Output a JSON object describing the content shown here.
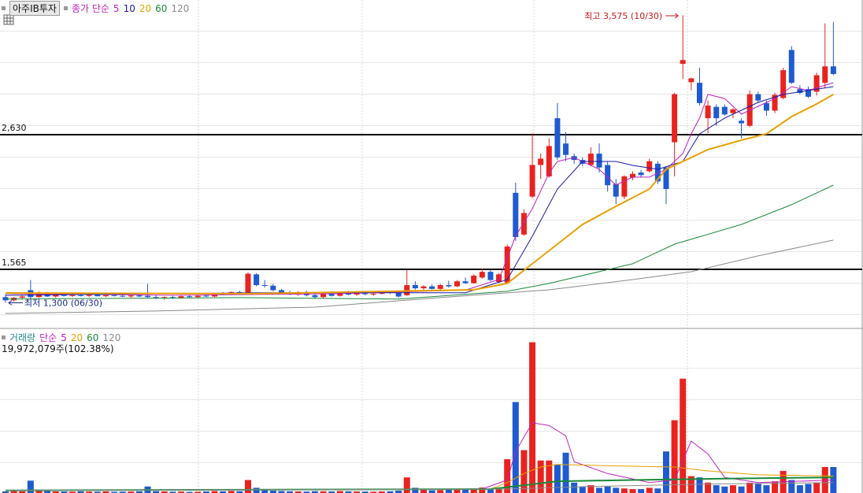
{
  "chart_data": [
    {
      "type": "candlestick",
      "title": "아주IB투자",
      "ma_label": "종가 단순",
      "up_color": "#e8231f",
      "down_color": "#1f5ad0",
      "ylim": [
        1110,
        3695
      ],
      "hlines": [
        {
          "value": 2630,
          "label": "2,630"
        },
        {
          "value": 1565,
          "label": "1,565"
        }
      ],
      "annotations": [
        {
          "text": "최고 3,575 (10/30)",
          "color": "#d01818"
        },
        {
          "text": "최저 1,300 (06/30)",
          "color": "#1a2a8a"
        }
      ],
      "open": [
        1345,
        1320,
        1340,
        1400,
        1345,
        1380,
        1350,
        1365,
        1355,
        1360,
        1355,
        1362,
        1352,
        1360,
        1355,
        1350,
        1358,
        1355,
        1345,
        1335,
        1345,
        1340,
        1352,
        1345,
        1356,
        1350,
        1372,
        1365,
        1385,
        1375,
        1525,
        1440,
        1435,
        1400,
        1378,
        1365,
        1385,
        1360,
        1345,
        1372,
        1355,
        1382,
        1365,
        1375,
        1368,
        1372,
        1385,
        1378,
        1360,
        1440,
        1415,
        1430,
        1410,
        1440,
        1430,
        1470,
        1455,
        1500,
        1545,
        1465,
        1460,
        2170,
        1840,
        2140,
        2390,
        2300,
        2760,
        2560,
        2460,
        2430,
        2390,
        2480,
        2390,
        2240,
        2140,
        2290,
        2330,
        2340,
        2400,
        2370,
        2570,
        3190,
        3045,
        3040,
        2760,
        2850,
        2850,
        2800,
        2740,
        2700,
        2950,
        2880,
        2820,
        2920,
        3300,
        2990,
        2990,
        2970,
        3040,
        3170
      ],
      "high": [
        1365,
        1345,
        1360,
        1480,
        1390,
        1385,
        1375,
        1380,
        1370,
        1375,
        1370,
        1375,
        1368,
        1372,
        1366,
        1365,
        1370,
        1450,
        1360,
        1350,
        1355,
        1358,
        1362,
        1360,
        1368,
        1380,
        1385,
        1390,
        1395,
        1540,
        1535,
        1480,
        1450,
        1410,
        1395,
        1390,
        1395,
        1375,
        1380,
        1385,
        1390,
        1395,
        1380,
        1385,
        1378,
        1390,
        1395,
        1400,
        1560,
        1470,
        1440,
        1445,
        1450,
        1475,
        1480,
        1500,
        1525,
        1570,
        1560,
        1535,
        1760,
        2250,
        2040,
        2640,
        2480,
        2600,
        2880,
        2650,
        2480,
        2450,
        2530,
        2560,
        2420,
        2280,
        2310,
        2340,
        2350,
        2440,
        2420,
        2380,
        2960,
        3575,
        3080,
        3160,
        2900,
        2870,
        2870,
        2840,
        2760,
        2980,
        2970,
        2900,
        2960,
        3160,
        3330,
        3020,
        3010,
        3120,
        3510,
        3520
      ],
      "low": [
        1300,
        1310,
        1325,
        1335,
        1340,
        1345,
        1340,
        1350,
        1345,
        1350,
        1345,
        1350,
        1345,
        1350,
        1345,
        1340,
        1345,
        1340,
        1330,
        1325,
        1330,
        1335,
        1340,
        1338,
        1345,
        1345,
        1360,
        1360,
        1365,
        1370,
        1430,
        1420,
        1390,
        1370,
        1360,
        1355,
        1350,
        1335,
        1335,
        1350,
        1350,
        1360,
        1355,
        1360,
        1355,
        1365,
        1370,
        1340,
        1355,
        1405,
        1395,
        1405,
        1400,
        1420,
        1425,
        1450,
        1450,
        1490,
        1470,
        1455,
        1450,
        1790,
        1830,
        2130,
        2280,
        2290,
        2430,
        2420,
        2400,
        2380,
        2380,
        2330,
        2180,
        2080,
        2120,
        2270,
        2290,
        2330,
        2240,
        2080,
        2300,
        3070,
        2980,
        2860,
        2640,
        2700,
        2780,
        2760,
        2600,
        2690,
        2880,
        2780,
        2800,
        2910,
        3030,
        2950,
        2920,
        2940,
        3000,
        3100
      ],
      "close": [
        1320,
        1340,
        1350,
        1345,
        1380,
        1350,
        1365,
        1355,
        1360,
        1355,
        1362,
        1352,
        1360,
        1355,
        1350,
        1358,
        1350,
        1345,
        1335,
        1345,
        1340,
        1352,
        1345,
        1356,
        1350,
        1372,
        1365,
        1385,
        1370,
        1530,
        1440,
        1435,
        1400,
        1378,
        1365,
        1385,
        1360,
        1345,
        1372,
        1355,
        1382,
        1365,
        1375,
        1368,
        1372,
        1385,
        1378,
        1350,
        1440,
        1415,
        1430,
        1410,
        1440,
        1430,
        1470,
        1455,
        1515,
        1545,
        1480,
        1525,
        1745,
        1820,
        2010,
        2390,
        2440,
        2540,
        2450,
        2470,
        2430,
        2400,
        2480,
        2370,
        2230,
        2140,
        2300,
        2320,
        2310,
        2420,
        2260,
        2200,
        2950,
        3220,
        3075,
        2880,
        2860,
        2760,
        2790,
        2830,
        2720,
        2950,
        2900,
        2820,
        2945,
        3140,
        3040,
        2960,
        2930,
        3100,
        3170,
        3110
      ],
      "series": [
        {
          "name": "5",
          "color": "#c020c0",
          "x": [
            0,
            20,
            40,
            55,
            59,
            61,
            63,
            65,
            66,
            68,
            71,
            73,
            75,
            77,
            79,
            81,
            82,
            83,
            84,
            86,
            88,
            90,
            92,
            94,
            96,
            99
          ],
          "values": [
            1372,
            1360,
            1372,
            1400,
            1484,
            1827,
            2045,
            2325,
            2418,
            2449,
            2356,
            2231,
            2294,
            2294,
            2356,
            2481,
            2636,
            2761,
            2948,
            2916,
            2792,
            2854,
            2916,
            3010,
            2979,
            3041
          ]
        },
        {
          "name": "10",
          "color": "#1a1aa0",
          "x": [
            0,
            30,
            55,
            60,
            63,
            66,
            69,
            73,
            75,
            78,
            81,
            83,
            86,
            88,
            90,
            93,
            96,
            99
          ],
          "values": [
            1359,
            1380,
            1380,
            1484,
            1827,
            2200,
            2418,
            2418,
            2387,
            2356,
            2418,
            2636,
            2761,
            2823,
            2885,
            2948,
            2979,
            3010
          ]
        },
        {
          "name": "20",
          "color": "#e8a000",
          "x": [
            0,
            30,
            56,
            60,
            63,
            66,
            69,
            73,
            77,
            79,
            82,
            84,
            88,
            91,
            94,
            97,
            99
          ],
          "values": [
            1378,
            1372,
            1403,
            1453,
            1609,
            1764,
            1920,
            2063,
            2200,
            2356,
            2449,
            2512,
            2586,
            2636,
            2773,
            2873,
            2948
          ]
        },
        {
          "name": "60",
          "color": "#1a8a3a",
          "x": [
            0,
            28,
            47,
            60,
            65,
            75,
            80,
            88,
            94,
            99
          ],
          "values": [
            1330,
            1341,
            1330,
            1391,
            1453,
            1609,
            1764,
            1920,
            2076,
            2231
          ]
        },
        {
          "name": "120",
          "color": "#8a8a8a",
          "x": [
            0,
            18,
            37,
            52,
            65,
            75,
            82,
            90,
            99
          ],
          "values": [
            1216,
            1235,
            1266,
            1341,
            1403,
            1484,
            1546,
            1671,
            1796
          ]
        }
      ]
    },
    {
      "type": "bar",
      "title": "거래량",
      "title_color": "#2a8a8a",
      "ma_label": "단순",
      "volume_label": "19,972,079주(102.38%)",
      "up_color": "#e8231f",
      "down_color": "#1f5ad0",
      "ylim": [
        0,
        120000000
      ],
      "values": [
        1200000,
        1500000,
        1300000,
        9500000,
        2000000,
        1500000,
        1200000,
        1100000,
        1000000,
        1300000,
        1100000,
        1000000,
        1200000,
        900000,
        1000000,
        1100000,
        1300000,
        5000000,
        1400000,
        1200000,
        1000000,
        1100000,
        900000,
        1000000,
        1200000,
        1500000,
        1300000,
        1600000,
        1400000,
        10000000,
        4000000,
        2200000,
        1800000,
        1500000,
        1300000,
        1200000,
        1100000,
        1400000,
        1300000,
        1200000,
        1500000,
        1300000,
        1200000,
        1100000,
        1000000,
        1200000,
        1300000,
        1800000,
        12000000,
        4000000,
        2500000,
        2000000,
        2200000,
        2800000,
        2400000,
        3000000,
        3500000,
        4200000,
        3000000,
        3500000,
        26000000,
        70000000,
        33000000,
        116000000,
        25000000,
        25000000,
        22000000,
        31000000,
        8000000,
        5000000,
        6000000,
        4000000,
        5000000,
        4000000,
        3500000,
        3000000,
        3000000,
        4000000,
        3500000,
        32000000,
        56000000,
        88000000,
        13000000,
        12000000,
        8000000,
        6000000,
        5000000,
        6000000,
        5000000,
        8000000,
        7000000,
        6000000,
        9000000,
        17000000,
        10000000,
        6000000,
        7000000,
        8000000,
        20000000,
        19972079
      ],
      "series": [
        {
          "name": "5",
          "color": "#c020c0",
          "x": [
            0,
            57,
            60,
            61,
            63,
            65,
            67,
            68,
            72,
            77,
            80,
            81,
            82,
            84,
            86,
            90,
            99
          ],
          "values": [
            2000000,
            3000000,
            10000000,
            32000000,
            54000000,
            52000000,
            44000000,
            24000000,
            15000000,
            8000000,
            10000000,
            25000000,
            40000000,
            30000000,
            12000000,
            8000000,
            10000000
          ]
        },
        {
          "name": "20",
          "color": "#e8a000",
          "x": [
            0,
            58,
            60,
            62,
            64,
            66,
            72,
            80,
            84,
            90,
            99
          ],
          "values": [
            2000000,
            3000000,
            8000000,
            15000000,
            20000000,
            22000000,
            21000000,
            20000000,
            17000000,
            14000000,
            13000000
          ]
        },
        {
          "name": "60",
          "color": "#1a8a3a",
          "x": [
            0,
            58,
            62,
            66,
            75,
            85,
            99
          ],
          "values": [
            2000000,
            3000000,
            6000000,
            9000000,
            10000000,
            11000000,
            12000000
          ]
        },
        {
          "name": "120",
          "color": "#8a8a8a",
          "x": [
            0,
            60,
            70,
            85,
            99
          ],
          "values": [
            2000000,
            3000000,
            5000000,
            7000000,
            8000000
          ]
        }
      ]
    }
  ]
}
